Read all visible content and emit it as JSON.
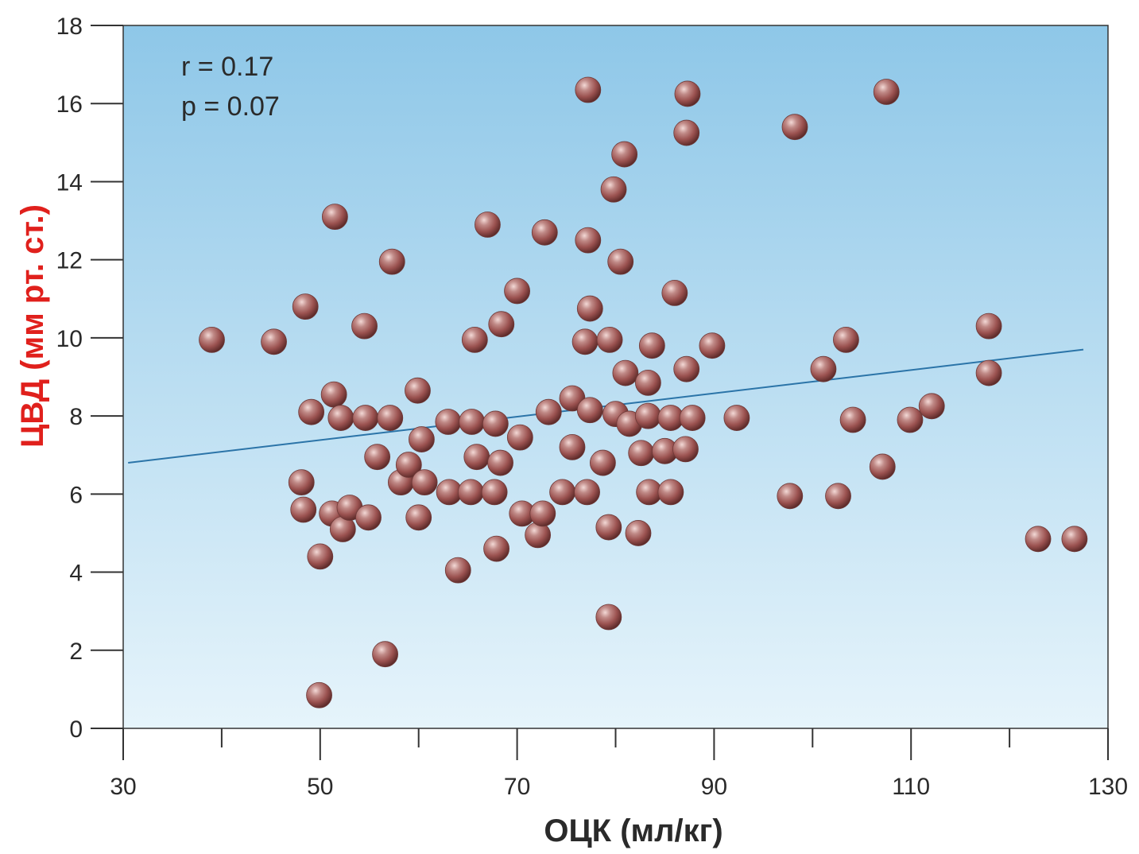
{
  "colors": {
    "plot_bg_top": "#8ec7e8",
    "plot_bg_bottom": "#e6f4fb",
    "point": "#9b5250",
    "point_highlight": "#f3d9d6",
    "trend_line": "#2b74a8",
    "ylabel": "#e0201c"
  },
  "chart_data": {
    "type": "scatter",
    "title": "",
    "xlabel": "ОЦК (мл/кг)",
    "ylabel": "ЦВД (мм рт. ст.)",
    "xlim": [
      30,
      130
    ],
    "ylim": [
      0,
      18
    ],
    "x_ticks": [
      30,
      50,
      70,
      90,
      110,
      130
    ],
    "x_tick_labels": [
      "30",
      "50",
      "70",
      "90",
      "110",
      "130"
    ],
    "y_ticks": [
      0,
      2,
      4,
      6,
      8,
      10,
      12,
      14,
      16,
      18
    ],
    "y_tick_labels": [
      "0",
      "2",
      "4",
      "6",
      "8",
      "10",
      "12",
      "14",
      "16",
      "18"
    ],
    "grid": false,
    "annotations": [
      "r = 0.17",
      "p = 0.07"
    ],
    "trend_line": {
      "x": [
        30.5,
        127.5
      ],
      "y": [
        6.8,
        9.7
      ]
    },
    "points": [
      [
        39,
        9.95
      ],
      [
        45.3,
        9.9
      ],
      [
        48.5,
        10.8
      ],
      [
        48.1,
        6.3
      ],
      [
        48.3,
        5.6
      ],
      [
        49.1,
        8.1
      ],
      [
        50,
        4.4
      ],
      [
        49.9,
        0.85
      ],
      [
        51.5,
        13.1
      ],
      [
        51.4,
        8.55
      ],
      [
        52.1,
        7.95
      ],
      [
        51.2,
        5.5
      ],
      [
        52.3,
        5.1
      ],
      [
        53,
        5.65
      ],
      [
        54.5,
        10.3
      ],
      [
        54.6,
        7.95
      ],
      [
        54.9,
        5.4
      ],
      [
        55.8,
        6.95
      ],
      [
        56.6,
        1.9
      ],
      [
        57.3,
        11.95
      ],
      [
        57.1,
        7.95
      ],
      [
        58.2,
        6.3
      ],
      [
        59,
        6.75
      ],
      [
        59.9,
        8.65
      ],
      [
        60.3,
        7.4
      ],
      [
        60.6,
        6.3
      ],
      [
        60,
        5.4
      ],
      [
        63,
        7.85
      ],
      [
        63.1,
        6.05
      ],
      [
        64,
        4.05
      ],
      [
        65.4,
        7.85
      ],
      [
        65.3,
        6.05
      ],
      [
        65.7,
        9.95
      ],
      [
        65.9,
        6.95
      ],
      [
        67,
        12.9
      ],
      [
        67.8,
        7.8
      ],
      [
        67.7,
        6.05
      ],
      [
        68.3,
        6.8
      ],
      [
        68.4,
        10.35
      ],
      [
        67.9,
        4.6
      ],
      [
        70,
        11.2
      ],
      [
        70.3,
        7.45
      ],
      [
        70.5,
        5.5
      ],
      [
        72.1,
        4.95
      ],
      [
        72.6,
        5.5
      ],
      [
        72.8,
        12.7
      ],
      [
        73.2,
        8.1
      ],
      [
        74.6,
        6.05
      ],
      [
        75.6,
        8.45
      ],
      [
        75.6,
        7.2
      ],
      [
        76.9,
        9.9
      ],
      [
        77.2,
        12.5
      ],
      [
        77.1,
        6.05
      ],
      [
        77.4,
        8.15
      ],
      [
        77.4,
        10.75
      ],
      [
        77.2,
        16.35
      ],
      [
        78.7,
        6.8
      ],
      [
        79.3,
        5.15
      ],
      [
        79.3,
        2.85
      ],
      [
        79.4,
        9.95
      ],
      [
        79.8,
        13.8
      ],
      [
        80,
        8.05
      ],
      [
        80.5,
        11.95
      ],
      [
        80.9,
        14.7
      ],
      [
        81,
        9.1
      ],
      [
        81.4,
        7.8
      ],
      [
        82.3,
        5
      ],
      [
        82.6,
        7.05
      ],
      [
        83.3,
        8.85
      ],
      [
        83.3,
        8
      ],
      [
        83.4,
        6.05
      ],
      [
        83.7,
        9.8
      ],
      [
        85,
        7.1
      ],
      [
        85.6,
        7.95
      ],
      [
        85.6,
        6.05
      ],
      [
        86,
        11.15
      ],
      [
        87.1,
        7.15
      ],
      [
        87.2,
        9.2
      ],
      [
        87.3,
        16.25
      ],
      [
        87.2,
        15.25
      ],
      [
        87.8,
        7.95
      ],
      [
        89.8,
        9.8
      ],
      [
        92.3,
        7.95
      ],
      [
        97.7,
        5.95
      ],
      [
        98.2,
        15.4
      ],
      [
        101.1,
        9.2
      ],
      [
        102.6,
        5.95
      ],
      [
        103.4,
        9.95
      ],
      [
        104.1,
        7.9
      ],
      [
        107.1,
        6.7
      ],
      [
        107.5,
        16.3
      ],
      [
        109.9,
        7.9
      ],
      [
        112.1,
        8.25
      ],
      [
        117.9,
        10.3
      ],
      [
        117.9,
        9.1
      ],
      [
        122.9,
        4.85
      ],
      [
        126.6,
        4.85
      ]
    ]
  }
}
